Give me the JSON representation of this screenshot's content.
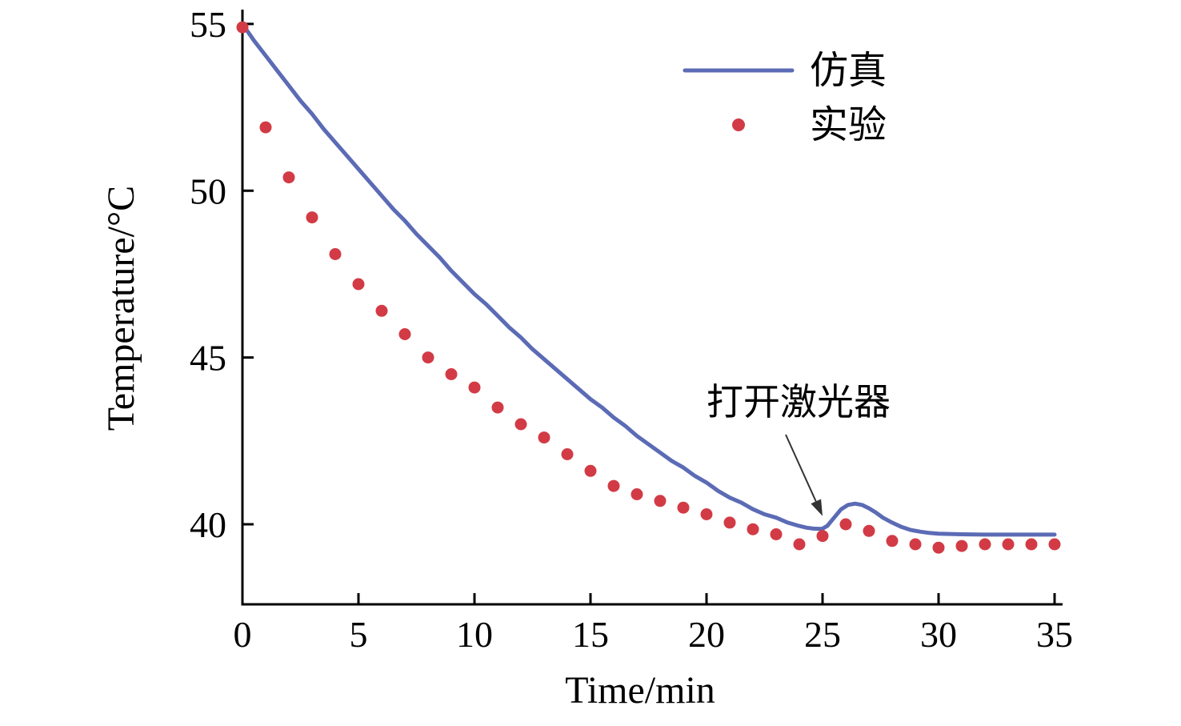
{
  "figure": {
    "background": "#ffffff",
    "axis_color": "#000000"
  },
  "chart_data": {
    "type": "line",
    "title": "",
    "xlabel": "Time/min",
    "ylabel": "Temperature/°C",
    "xlim": [
      0,
      35
    ],
    "ylim": [
      37.6,
      55.43
    ],
    "xticks": [
      0,
      5,
      10,
      15,
      20,
      25,
      30,
      35
    ],
    "yticks": [
      40,
      45,
      50,
      55
    ],
    "grid": false,
    "legend_position": "top-right",
    "annotation": {
      "text": "打开激光器",
      "arrow_target_x": 25,
      "arrow_target_y": 40.25
    },
    "series": [
      {
        "name": "仿真",
        "type": "line",
        "color": "#5b6bb5",
        "x": [
          0,
          0.5,
          1,
          1.5,
          2,
          2.5,
          3,
          3.5,
          4,
          4.5,
          5,
          5.5,
          6,
          6.5,
          7,
          7.5,
          8,
          8.5,
          9,
          9.5,
          10,
          10.5,
          11,
          11.5,
          12,
          12.5,
          13,
          13.5,
          14,
          14.5,
          15,
          15.5,
          16,
          16.5,
          17,
          17.5,
          18,
          18.5,
          19,
          19.5,
          20,
          20.5,
          21,
          21.5,
          22,
          22.5,
          23,
          23.5,
          24,
          24.3,
          24.6,
          24.9,
          25,
          25.2,
          25.5,
          25.8,
          26.1,
          26.4,
          26.7,
          27,
          27.3,
          27.6,
          28,
          28.4,
          28.8,
          29.2,
          29.6,
          30,
          31,
          32,
          33,
          34,
          35
        ],
        "y": [
          55,
          54.5,
          54.05,
          53.6,
          53.15,
          52.7,
          52.3,
          51.85,
          51.45,
          51.05,
          50.65,
          50.25,
          49.85,
          49.45,
          49.1,
          48.7,
          48.35,
          48.0,
          47.6,
          47.25,
          46.9,
          46.6,
          46.25,
          45.9,
          45.6,
          45.25,
          44.95,
          44.65,
          44.35,
          44.05,
          43.75,
          43.5,
          43.2,
          42.95,
          42.65,
          42.4,
          42.15,
          41.9,
          41.7,
          41.45,
          41.25,
          41.0,
          40.8,
          40.65,
          40.45,
          40.3,
          40.2,
          40.05,
          39.95,
          39.9,
          39.87,
          39.86,
          39.87,
          39.95,
          40.2,
          40.45,
          40.58,
          40.62,
          40.58,
          40.48,
          40.35,
          40.2,
          40.05,
          39.92,
          39.83,
          39.78,
          39.74,
          39.72,
          39.7,
          39.69,
          39.69,
          39.69,
          39.69
        ]
      },
      {
        "name": "实验",
        "type": "scatter",
        "color": "#d23b45",
        "x": [
          0,
          1,
          2,
          3,
          4,
          5,
          6,
          7,
          8,
          9,
          10,
          11,
          12,
          13,
          14,
          15,
          16,
          17,
          18,
          19,
          20,
          21,
          22,
          23,
          24,
          25,
          26,
          27,
          28,
          29,
          30,
          31,
          32,
          33,
          34,
          35
        ],
        "y": [
          54.9,
          51.9,
          50.4,
          49.2,
          48.1,
          47.2,
          46.4,
          45.7,
          45.0,
          44.5,
          44.1,
          43.5,
          43.0,
          42.6,
          42.1,
          41.6,
          41.15,
          40.9,
          40.7,
          40.5,
          40.3,
          40.05,
          39.85,
          39.7,
          39.4,
          39.65,
          40.0,
          39.8,
          39.5,
          39.4,
          39.3,
          39.35,
          39.4,
          39.4,
          39.4,
          39.4
        ]
      }
    ]
  }
}
